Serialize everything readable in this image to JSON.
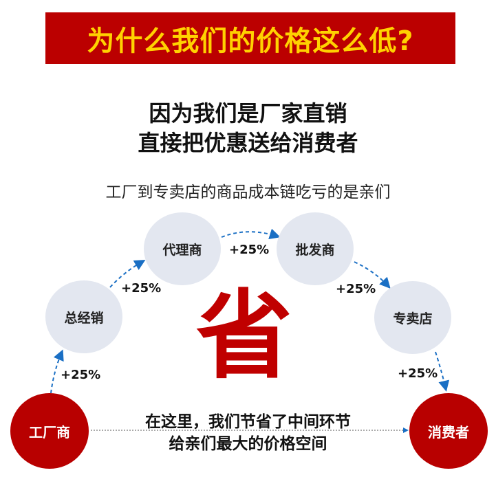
{
  "banner": {
    "title": "为什么我们的价格这么低?"
  },
  "headline": {
    "line1": "因为我们是厂家直销",
    "line2": "直接把优惠送给消费者"
  },
  "subtitle": "工厂到专卖店的商品成本链吃亏的是亲们",
  "chain": {
    "factory": "工厂商",
    "distributor": "总经销",
    "agent": "代理商",
    "wholesaler": "批发商",
    "store": "专卖店",
    "consumer": "消费者",
    "markups": [
      "+25%",
      "+25%",
      "+25%",
      "+25%",
      "+25%"
    ]
  },
  "center_char": "省",
  "bottom": {
    "line1": "在这里，我们节省了中间环节",
    "line2": "给亲们最大的价格空间"
  },
  "colors": {
    "banner_bg": "#bb0000",
    "banner_text": "#ffd200",
    "accent_red": "#b80000",
    "arrow_blue": "#1a6fc4",
    "node_gray": "#e3e7f0"
  }
}
